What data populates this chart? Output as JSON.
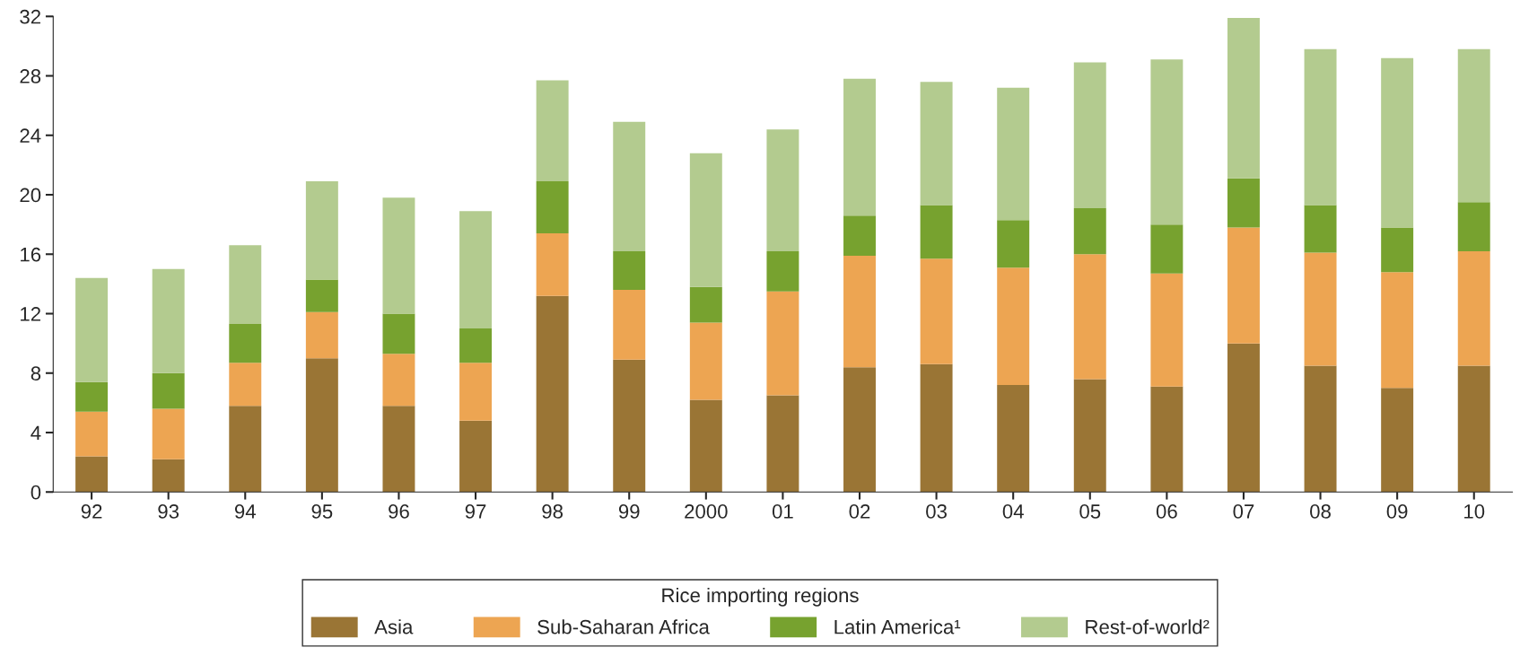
{
  "chart_data": {
    "type": "bar",
    "stacked": true,
    "legend_title": "Rice importing regions",
    "legend": "bottom",
    "categories": [
      "92",
      "93",
      "94",
      "95",
      "96",
      "97",
      "98",
      "99",
      "2000",
      "01",
      "02",
      "03",
      "04",
      "05",
      "06",
      "07",
      "08",
      "09",
      "10"
    ],
    "ylim": [
      0,
      32
    ],
    "yticks": [
      0,
      4,
      8,
      12,
      16,
      20,
      24,
      28,
      32
    ],
    "grid": false,
    "series": [
      {
        "name": "Asia",
        "color": "#9a7535",
        "values": [
          2.4,
          2.2,
          5.8,
          9.0,
          5.8,
          4.8,
          13.2,
          8.9,
          6.2,
          6.5,
          8.4,
          8.6,
          7.2,
          7.6,
          7.1,
          10.0,
          8.5,
          7.0,
          8.5
        ]
      },
      {
        "name": "Sub-Saharan Africa",
        "color": "#eda552",
        "values": [
          3.0,
          3.4,
          2.9,
          3.1,
          3.5,
          3.9,
          4.2,
          4.7,
          5.2,
          7.0,
          7.5,
          7.1,
          7.9,
          8.4,
          7.6,
          7.8,
          7.6,
          7.8,
          7.7
        ]
      },
      {
        "name": "Latin America¹",
        "color": "#77a22f",
        "values": [
          2.0,
          2.4,
          2.6,
          2.2,
          2.7,
          2.3,
          3.5,
          2.6,
          2.4,
          2.7,
          2.7,
          3.6,
          3.2,
          3.1,
          3.3,
          3.3,
          3.2,
          3.0,
          3.3
        ]
      },
      {
        "name": "Rest-of-world²",
        "color": "#b3cb8f",
        "values": [
          7.0,
          7.0,
          5.3,
          6.6,
          7.8,
          7.9,
          6.8,
          8.7,
          9.0,
          8.2,
          9.2,
          8.3,
          8.9,
          9.8,
          11.1,
          10.8,
          10.5,
          11.4,
          10.3
        ]
      }
    ]
  }
}
